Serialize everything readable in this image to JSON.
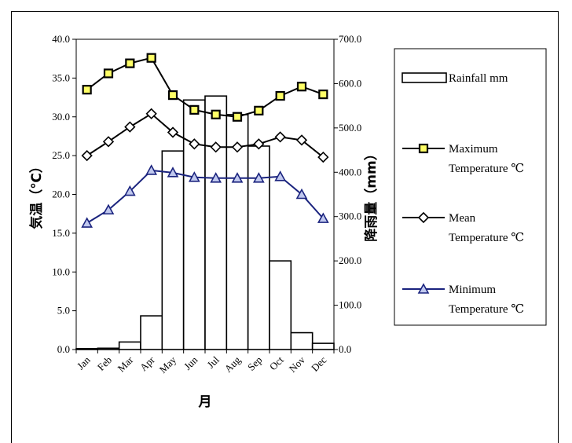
{
  "chart_data": {
    "type": "bar+line",
    "categories": [
      "Jan",
      "Feb",
      "Mar",
      "Apr",
      "May",
      "Jun",
      "Jul",
      "Aug",
      "Sep",
      "Oct",
      "Nov",
      "Dec"
    ],
    "xlabel": "月",
    "ylabel_left": "気温（℃）",
    "ylabel_right": "降雨量（mm）",
    "ylim_left": [
      0,
      40
    ],
    "ylim_right": [
      0,
      700
    ],
    "yticks_left": [
      "0.0",
      "5.0",
      "10.0",
      "15.0",
      "20.0",
      "25.0",
      "30.0",
      "35.0",
      "40.0"
    ],
    "yticks_right": [
      "0.0",
      "100.0",
      "200.0",
      "300.0",
      "400.0",
      "500.0",
      "600.0",
      "700.0"
    ],
    "bars": {
      "name": "Rainfall mm",
      "axis": "right",
      "values": [
        2,
        3,
        17,
        76,
        448,
        563,
        572,
        530,
        459,
        200,
        38,
        14
      ],
      "fill": "#ffffff",
      "stroke": "#000000"
    },
    "series": [
      {
        "name": "Maximum Temperature ℃",
        "name_lines": [
          "Maximum",
          "Temperature ℃"
        ],
        "axis": "left",
        "marker": "square",
        "color": "#000000",
        "marker_fill": "#ffff66",
        "values": [
          33.5,
          35.6,
          36.9,
          37.6,
          32.8,
          30.9,
          30.3,
          30.0,
          30.8,
          32.7,
          33.9,
          32.9
        ]
      },
      {
        "name": "Mean Temperature ℃",
        "name_lines": [
          "Mean",
          "Temperature ℃"
        ],
        "axis": "left",
        "marker": "diamond",
        "color": "#000000",
        "marker_fill": "#ffffff",
        "values": [
          25.0,
          26.8,
          28.7,
          30.4,
          28.0,
          26.5,
          26.1,
          26.1,
          26.5,
          27.4,
          27.0,
          24.8
        ]
      },
      {
        "name": "Minimum Temperature ℃",
        "name_lines": [
          "Minimum",
          "Temperature ℃"
        ],
        "axis": "left",
        "marker": "triangle",
        "color": "#1a237e",
        "marker_fill": "#c0c8ee",
        "values": [
          16.3,
          18.0,
          20.4,
          23.1,
          22.8,
          22.2,
          22.1,
          22.1,
          22.1,
          22.3,
          20.0,
          16.9
        ]
      }
    ],
    "legend_position": "right"
  }
}
